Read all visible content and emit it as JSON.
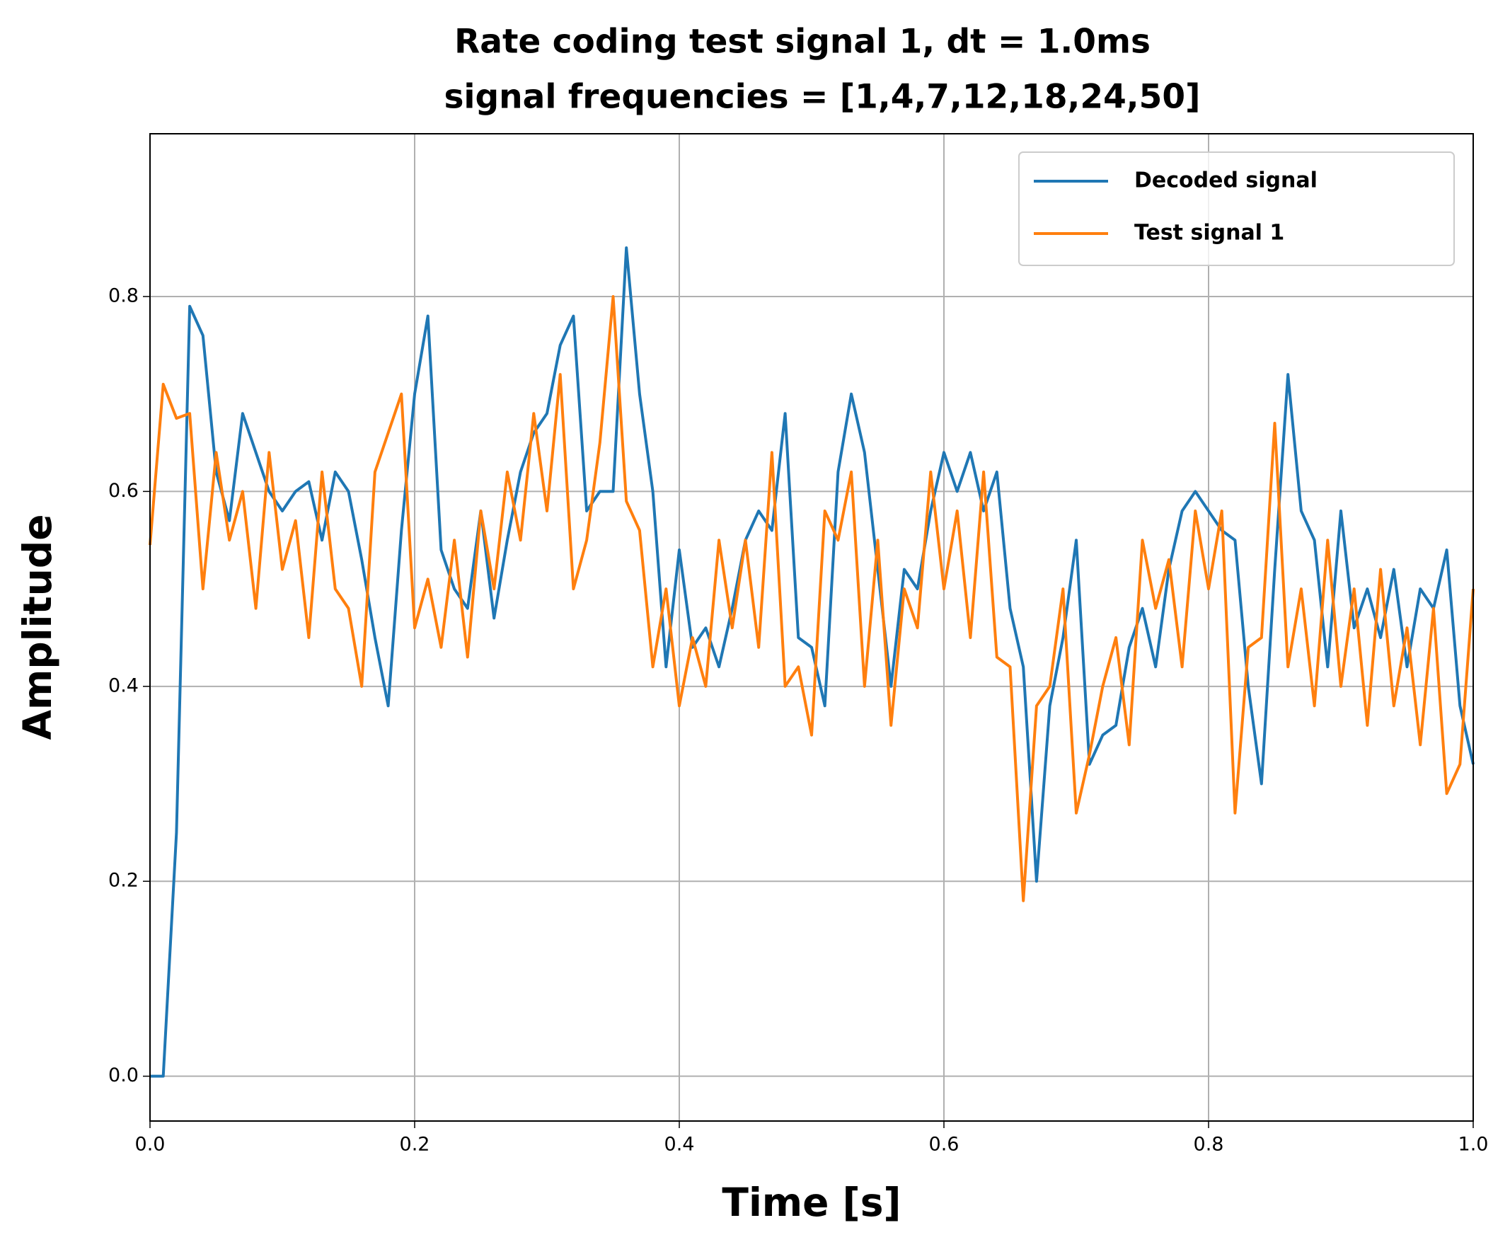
{
  "chart_data": {
    "type": "line",
    "title": "Rate coding test signal 1, dt = 1.0ms",
    "subtitle": "signal frequencies = [1,4,7,12,18,24,50]",
    "x_label": "Time [s]",
    "y_label": "Amplitude",
    "x": [
      0,
      0.01,
      0.02,
      0.03,
      0.04,
      0.05,
      0.06,
      0.07,
      0.08,
      0.09,
      0.1,
      0.11,
      0.12,
      0.13,
      0.14,
      0.15,
      0.16,
      0.17,
      0.18,
      0.19,
      0.2,
      0.21,
      0.22,
      0.23,
      0.24,
      0.25,
      0.26,
      0.27,
      0.28,
      0.29,
      0.3,
      0.31,
      0.32,
      0.33,
      0.34,
      0.35,
      0.36,
      0.37,
      0.38,
      0.39,
      0.4,
      0.41,
      0.42,
      0.43,
      0.44,
      0.45,
      0.46,
      0.47,
      0.48,
      0.49,
      0.5,
      0.51,
      0.52,
      0.53,
      0.54,
      0.55,
      0.56,
      0.57,
      0.58,
      0.59,
      0.6,
      0.61,
      0.62,
      0.63,
      0.64,
      0.65,
      0.66,
      0.67,
      0.68,
      0.69,
      0.7,
      0.71,
      0.72,
      0.73,
      0.74,
      0.75,
      0.76,
      0.77,
      0.78,
      0.79,
      0.8,
      0.81,
      0.82,
      0.83,
      0.84,
      0.85,
      0.86,
      0.87,
      0.88,
      0.89,
      0.9,
      0.91,
      0.92,
      0.93,
      0.94,
      0.95,
      0.96,
      0.97,
      0.98,
      0.99,
      1
    ],
    "series": [
      {
        "name": "Decoded signal",
        "color": "#1f77b4",
        "values": [
          0,
          0,
          0.25,
          0.79,
          0.76,
          0.62,
          0.57,
          0.68,
          0.64,
          0.6,
          0.58,
          0.6,
          0.61,
          0.55,
          0.62,
          0.6,
          0.53,
          0.45,
          0.38,
          0.56,
          0.7,
          0.78,
          0.54,
          0.5,
          0.48,
          0.58,
          0.47,
          0.55,
          0.62,
          0.66,
          0.68,
          0.75,
          0.78,
          0.58,
          0.6,
          0.6,
          0.85,
          0.7,
          0.6,
          0.42,
          0.54,
          0.44,
          0.46,
          0.42,
          0.48,
          0.55,
          0.58,
          0.56,
          0.68,
          0.45,
          0.44,
          0.38,
          0.62,
          0.7,
          0.64,
          0.52,
          0.4,
          0.52,
          0.5,
          0.58,
          0.64,
          0.6,
          0.64,
          0.58,
          0.62,
          0.48,
          0.42,
          0.2,
          0.38,
          0.45,
          0.55,
          0.32,
          0.35,
          0.36,
          0.44,
          0.48,
          0.42,
          0.52,
          0.58,
          0.6,
          0.58,
          0.56,
          0.55,
          0.4,
          0.3,
          0.52,
          0.72,
          0.58,
          0.55,
          0.42,
          0.58,
          0.46,
          0.5,
          0.45,
          0.52,
          0.42,
          0.5,
          0.48,
          0.54,
          0.38,
          0.32
        ]
      },
      {
        "name": "Test signal 1",
        "color": "#ff7f0e",
        "values": [
          0.545,
          0.71,
          0.675,
          0.68,
          0.5,
          0.64,
          0.55,
          0.6,
          0.48,
          0.64,
          0.52,
          0.57,
          0.45,
          0.62,
          0.5,
          0.48,
          0.4,
          0.62,
          0.66,
          0.7,
          0.46,
          0.51,
          0.44,
          0.55,
          0.43,
          0.58,
          0.5,
          0.62,
          0.55,
          0.68,
          0.58,
          0.72,
          0.5,
          0.55,
          0.65,
          0.8,
          0.59,
          0.56,
          0.42,
          0.5,
          0.38,
          0.45,
          0.4,
          0.55,
          0.46,
          0.55,
          0.44,
          0.64,
          0.4,
          0.42,
          0.35,
          0.58,
          0.55,
          0.62,
          0.4,
          0.55,
          0.36,
          0.5,
          0.46,
          0.62,
          0.5,
          0.58,
          0.45,
          0.62,
          0.43,
          0.42,
          0.18,
          0.38,
          0.4,
          0.5,
          0.27,
          0.33,
          0.4,
          0.45,
          0.34,
          0.55,
          0.48,
          0.53,
          0.42,
          0.58,
          0.5,
          0.58,
          0.27,
          0.44,
          0.45,
          0.67,
          0.42,
          0.5,
          0.38,
          0.55,
          0.4,
          0.5,
          0.36,
          0.52,
          0.38,
          0.46,
          0.34,
          0.48,
          0.29,
          0.32,
          0.5
        ]
      }
    ],
    "xlim": [
      0,
      1
    ],
    "ylim": [
      -0.046,
      0.967
    ],
    "xticks": [
      {
        "value": 0,
        "label": "0.0"
      },
      0.2,
      0.4,
      0.6,
      0.8,
      {
        "value": 1,
        "label": "1.0"
      }
    ],
    "yticks": [
      {
        "value": 0,
        "label": "0.0"
      },
      0.2,
      0.4,
      0.6,
      0.8
    ],
    "grid": true,
    "legend": "upper right"
  }
}
